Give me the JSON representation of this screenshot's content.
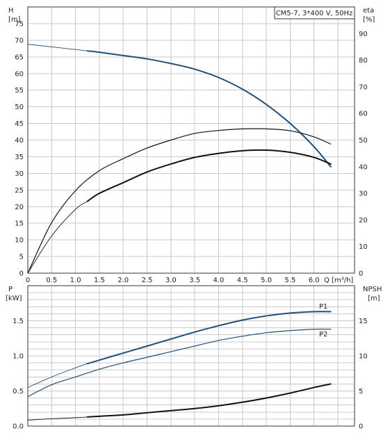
{
  "chart_data": [
    {
      "type": "line",
      "legend": "CM5-7, 3*400 V, 50Hz",
      "xlabel": "Q [m³/h]",
      "ylabel": [
        "H",
        "[m]"
      ],
      "y2label": [
        "eta",
        "[%]"
      ],
      "xlim": [
        0,
        6.85
      ],
      "ylim": [
        0,
        80
      ],
      "y2lim": [
        0,
        100
      ],
      "x_ticks": [
        "0",
        "0.5",
        "1.0",
        "1.5",
        "2.0",
        "2.5",
        "3.0",
        "3.5",
        "4.0",
        "4.5",
        "5.0",
        "5.5",
        "6.0"
      ],
      "y_ticks": [
        "0",
        "5",
        "10",
        "15",
        "20",
        "25",
        "30",
        "35",
        "40",
        "45",
        "50",
        "55",
        "60",
        "65",
        "70",
        "75"
      ],
      "y2_ticks": [
        "0",
        "10",
        "20",
        "30",
        "40",
        "50",
        "60",
        "70",
        "80",
        "90"
      ],
      "series": [
        {
          "axis": "left",
          "color": "#1f4e79",
          "width": 2,
          "x": [
            0,
            1.25,
            1.5,
            2.0,
            2.5,
            3.0,
            3.5,
            4.0,
            4.5,
            5.0,
            5.5,
            6.0,
            6.35
          ],
          "y": [
            68.8,
            66.8,
            66.4,
            65.4,
            64.4,
            63.0,
            61.3,
            58.8,
            55.3,
            50.7,
            45.0,
            38.0,
            32.0
          ],
          "thin_until_x": 1.25
        },
        {
          "axis": "right",
          "color": "#111111",
          "width": 1.2,
          "x": [
            0,
            0.5,
            1.0,
            1.5,
            2.0,
            2.5,
            3.0,
            3.5,
            4.0,
            4.5,
            5.0,
            5.5,
            6.0,
            6.35
          ],
          "y": [
            0,
            19,
            31,
            38.5,
            43,
            47,
            50,
            52.5,
            53.6,
            54.2,
            54.2,
            53.5,
            51.2,
            48.5
          ]
        },
        {
          "axis": "right",
          "color": "#111111",
          "width": 2,
          "x": [
            0,
            0.5,
            1.0,
            1.25,
            1.5,
            2.0,
            2.5,
            3.0,
            3.5,
            4.0,
            4.5,
            5.0,
            5.5,
            6.0,
            6.35
          ],
          "y": [
            0,
            14,
            24,
            27,
            30,
            34,
            38,
            41,
            43.5,
            45,
            46,
            46.2,
            45.4,
            43.5,
            41
          ],
          "thin_until_x": 1.25
        }
      ]
    },
    {
      "type": "line",
      "xlabel": "",
      "ylabel": [
        "P",
        "[kW]"
      ],
      "y2label": [
        "NPSH",
        "[m]"
      ],
      "xlim": [
        0,
        6.85
      ],
      "ylim": [
        0,
        2.0
      ],
      "y2lim": [
        0,
        20
      ],
      "y_ticks": [
        "0.0",
        "0.5",
        "1.0",
        "1.5"
      ],
      "y2_ticks": [
        "0",
        "5",
        "10",
        "15"
      ],
      "series": [
        {
          "name": "P1",
          "axis": "left",
          "color": "#1f4e79",
          "width": 2,
          "x": [
            0,
            0.5,
            1.0,
            1.25,
            1.5,
            2.0,
            2.5,
            3.0,
            3.5,
            4.0,
            4.5,
            5.0,
            5.5,
            6.0,
            6.35
          ],
          "y": [
            0.55,
            0.7,
            0.83,
            0.89,
            0.94,
            1.04,
            1.14,
            1.24,
            1.34,
            1.43,
            1.51,
            1.57,
            1.61,
            1.63,
            1.63
          ],
          "thin_until_x": 1.25
        },
        {
          "name": "P2",
          "axis": "left",
          "color": "#1f4e79",
          "width": 1.2,
          "x": [
            0,
            0.5,
            1.0,
            1.5,
            2.0,
            2.5,
            3.0,
            3.5,
            4.0,
            4.5,
            5.0,
            5.5,
            6.0,
            6.35
          ],
          "y": [
            0.42,
            0.59,
            0.7,
            0.81,
            0.9,
            0.98,
            1.06,
            1.14,
            1.22,
            1.28,
            1.33,
            1.36,
            1.38,
            1.38
          ]
        },
        {
          "axis": "right",
          "color": "#111111",
          "width": 2,
          "x": [
            0,
            0.5,
            1.0,
            1.25,
            1.5,
            2.0,
            2.5,
            3.0,
            3.5,
            4.0,
            4.5,
            5.0,
            5.5,
            6.0,
            6.35
          ],
          "y": [
            0.85,
            1.05,
            1.2,
            1.3,
            1.4,
            1.6,
            1.9,
            2.2,
            2.5,
            2.9,
            3.4,
            4.0,
            4.7,
            5.5,
            6.0
          ],
          "thin_until_x": 1.25
        }
      ]
    }
  ]
}
